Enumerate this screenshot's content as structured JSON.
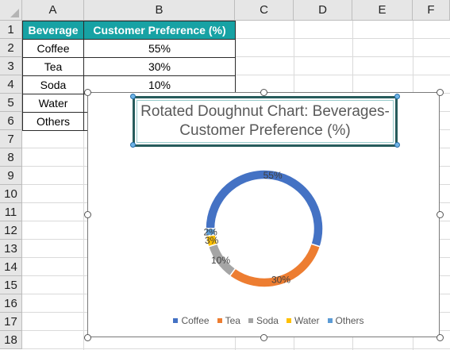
{
  "columns": [
    "A",
    "B",
    "C",
    "D",
    "E",
    "F"
  ],
  "rows": [
    "1",
    "2",
    "3",
    "4",
    "5",
    "6",
    "7",
    "8",
    "9",
    "10",
    "11",
    "12",
    "13",
    "14",
    "15",
    "16",
    "17",
    "18"
  ],
  "table": {
    "header": [
      "Beverage",
      "Customer Preference (%)"
    ],
    "body": [
      [
        "Coffee",
        "55%"
      ],
      [
        "Tea",
        "30%"
      ],
      [
        "Soda",
        "10%"
      ],
      [
        "Water",
        ""
      ],
      [
        "Others",
        ""
      ]
    ]
  },
  "chart_data": {
    "type": "pie",
    "subtype": "doughnut",
    "title": "Rotated Doughnut Chart: Beverages-Customer Preference (%)",
    "categories": [
      "Coffee",
      "Tea",
      "Soda",
      "Water",
      "Others"
    ],
    "values": [
      55,
      30,
      10,
      3,
      2
    ],
    "data_labels": [
      "55%",
      "30%",
      "10%",
      "3%",
      "2%"
    ],
    "colors": [
      "#4472c4",
      "#ed7d31",
      "#a5a5a5",
      "#ffc000",
      "#5b9bd5"
    ],
    "first_slice_angle_deg": 270,
    "legend_position": "bottom"
  }
}
